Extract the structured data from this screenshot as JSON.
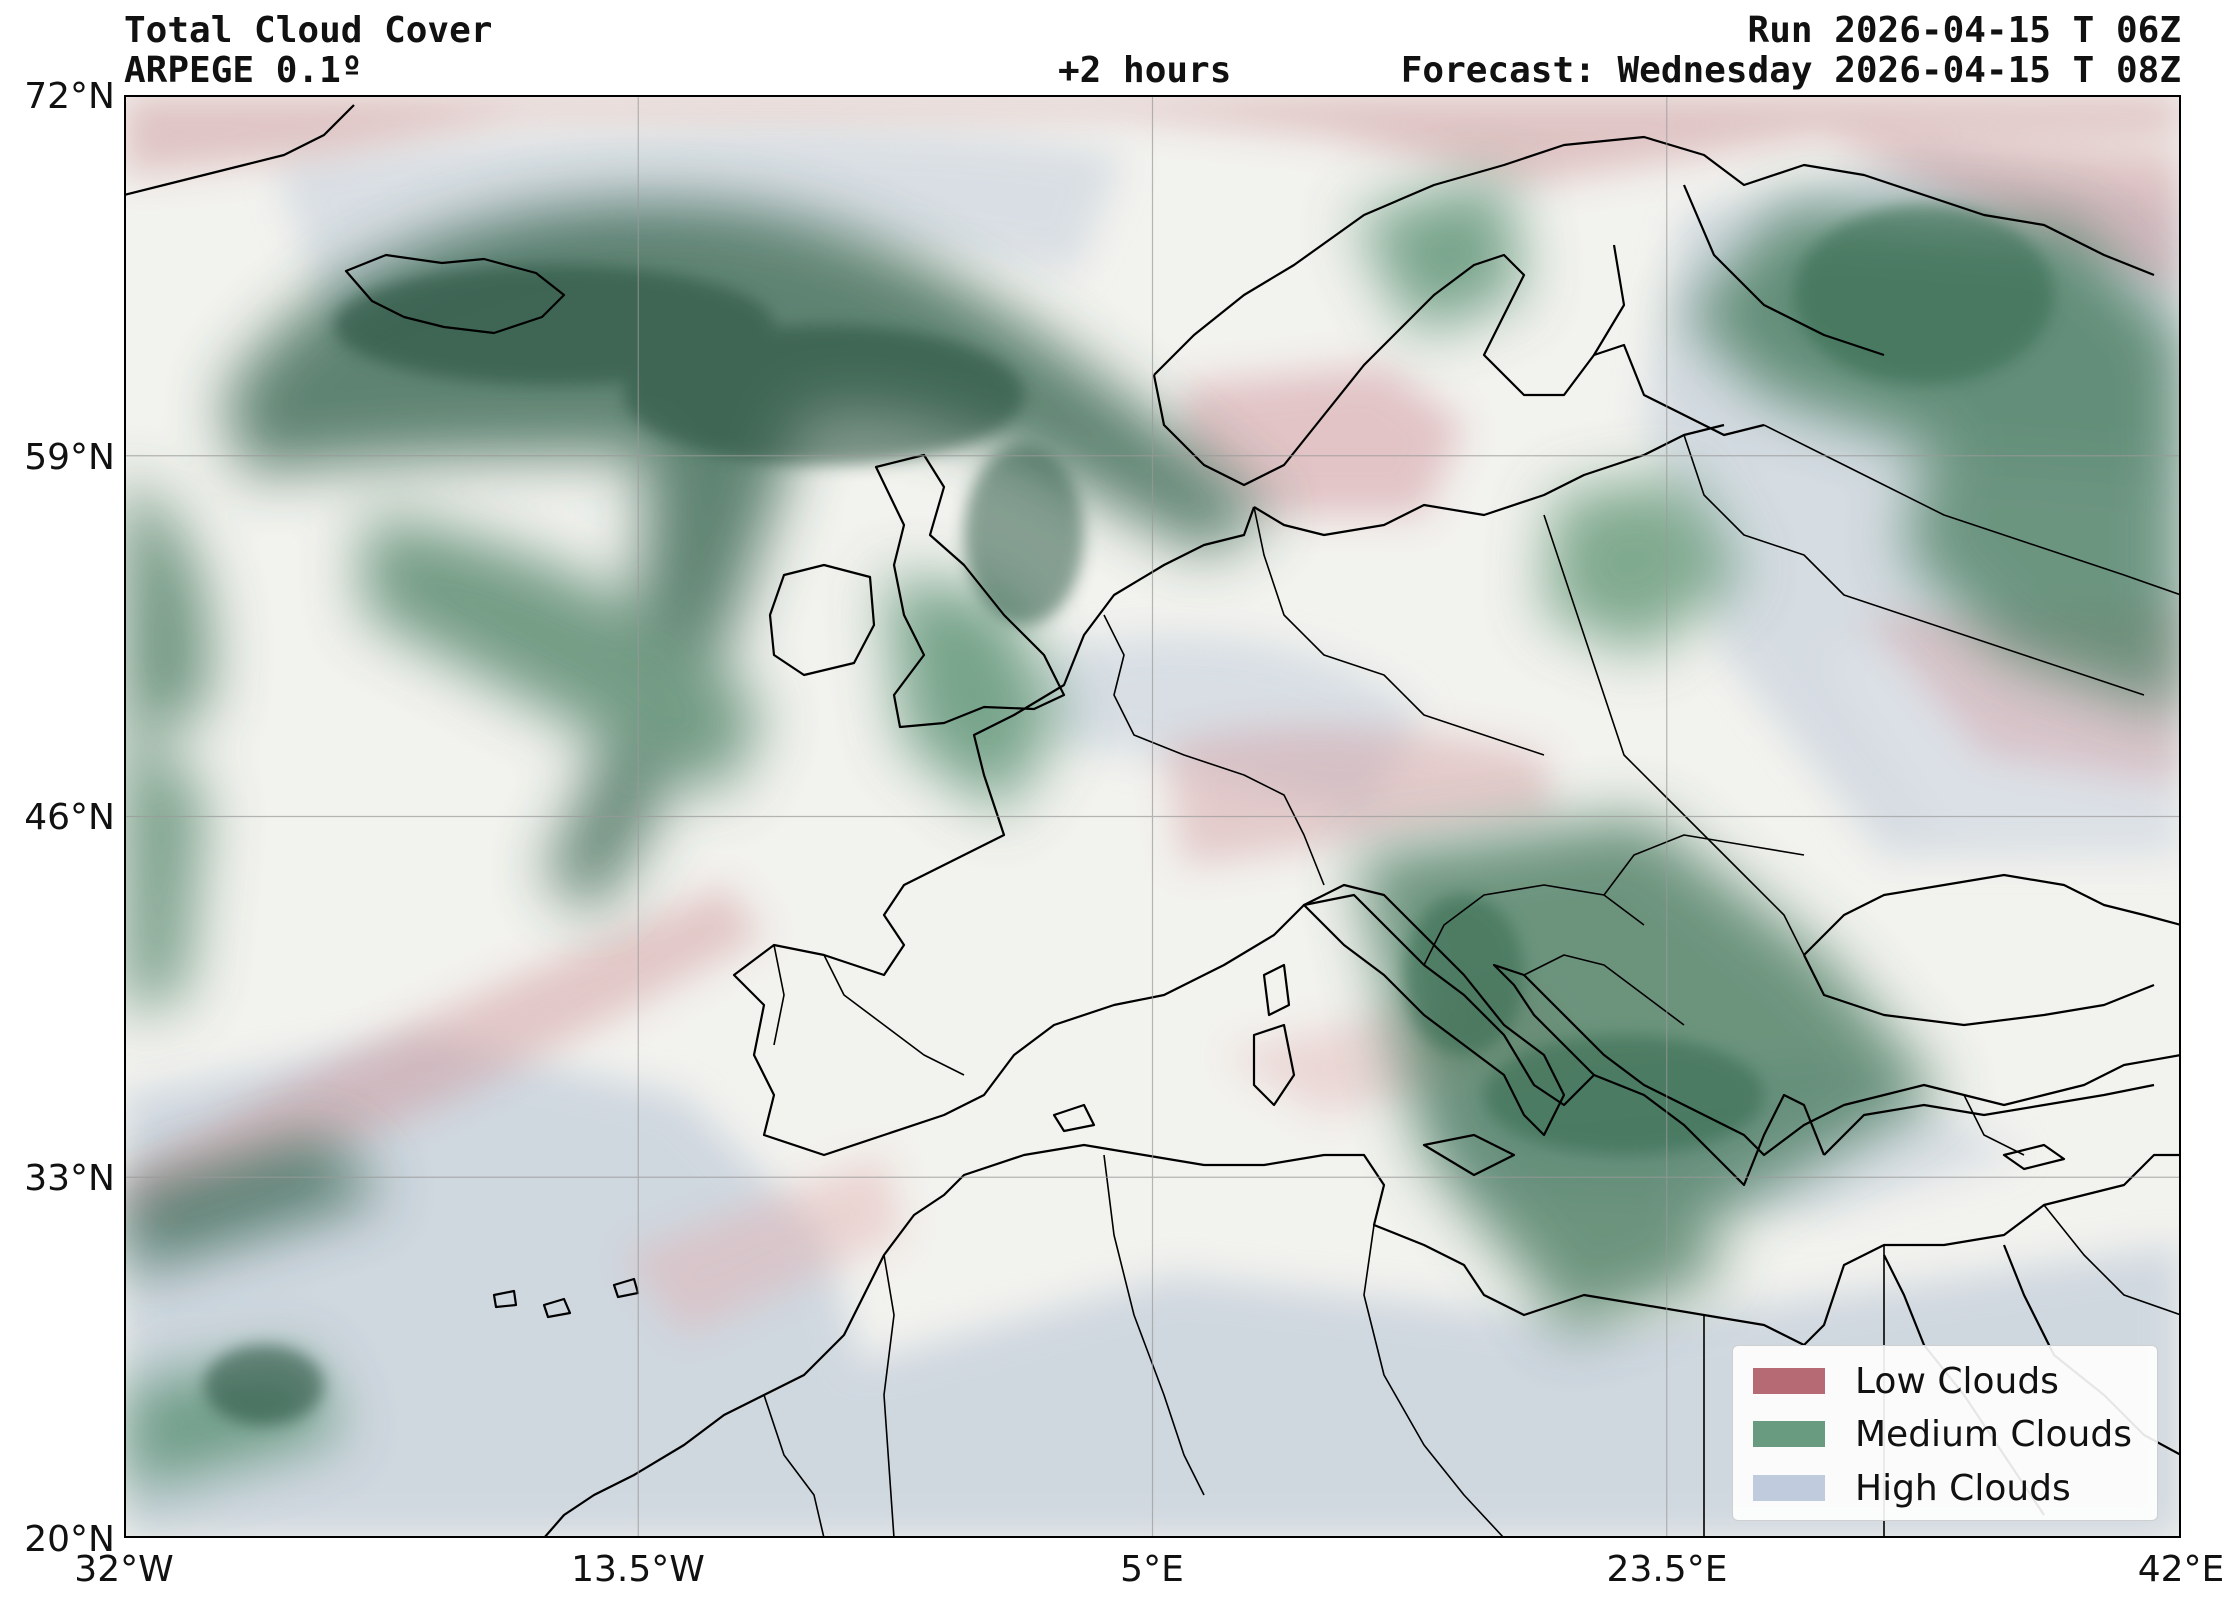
{
  "header": {
    "title": "Total Cloud Cover",
    "model": "ARPEGE 0.1º",
    "lead": "+2 hours",
    "run": "Run 2026-04-15 T 06Z",
    "forecast": "Forecast: Wednesday 2026-04-15 T 08Z"
  },
  "axes": {
    "lat_labels": [
      "72°N",
      "59°N",
      "46°N",
      "33°N",
      "20°N"
    ],
    "lon_labels": [
      "32°W",
      "13.5°W",
      "5°E",
      "23.5°E",
      "42°E"
    ]
  },
  "map": {
    "extent_lon": [
      -32,
      42
    ],
    "extent_lat": [
      20,
      72
    ],
    "gridlines": true,
    "land_color": "#f2f2ee",
    "sea_color": "#f2f2ee"
  },
  "legend": {
    "placement": "bottom-right",
    "items": [
      {
        "label": "Low Clouds",
        "color": "#a8505c"
      },
      {
        "label": "Medium Clouds",
        "color": "#4f8a6a"
      },
      {
        "label": "High Clouds",
        "color": "#b9c6d9"
      }
    ]
  }
}
